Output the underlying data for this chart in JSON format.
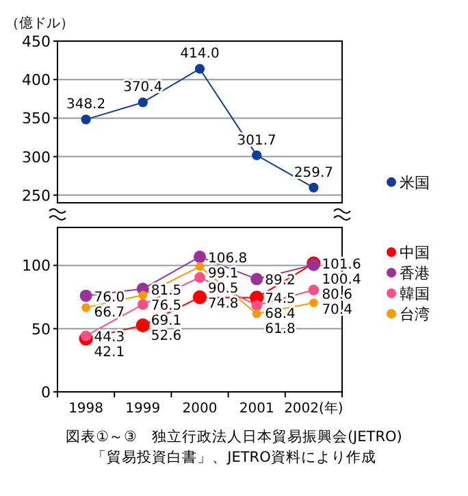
{
  "chart_data": [
    {
      "type": "line",
      "ylabel": "（億ドル）",
      "ylim": [
        240,
        450
      ],
      "yticks": [
        250,
        300,
        350,
        400,
        450
      ],
      "grid": "y",
      "marker": "circle",
      "line_style": "solid",
      "legend": "right",
      "series": [
        {
          "name": "米国",
          "color": "#103c9c",
          "values": [
            348.2,
            370.4,
            414.0,
            301.7,
            259.7
          ],
          "value_labels": [
            "348.2",
            "370.4",
            "414.0",
            "301.7",
            "259.7"
          ]
        }
      ]
    },
    {
      "type": "line",
      "categories": [
        "1998",
        "1999",
        "2000",
        "2001",
        "2002(年)"
      ],
      "ylim": [
        0,
        130
      ],
      "yticks": [
        0,
        50,
        100
      ],
      "grid": "y",
      "marker": "circle",
      "line_style": "solid",
      "data_labels": true,
      "legend": "right",
      "series": [
        {
          "name": "中国",
          "color": "#ff0000",
          "values": [
            42.1,
            52.6,
            74.8,
            74.5,
            101.6
          ]
        },
        {
          "name": "香港",
          "color": "#993399",
          "values": [
            76.0,
            81.5,
            106.8,
            89.2,
            100.4
          ],
          "value_labels": [
            "76.0",
            "81.5",
            "106.8",
            "89.2",
            "100.4"
          ]
        },
        {
          "name": "韓国",
          "color": "#ff4d88",
          "values": [
            44.3,
            69.1,
            90.5,
            68.4,
            80.6
          ]
        },
        {
          "name": "台湾",
          "color": "#ff9900",
          "values": [
            66.7,
            76.5,
            99.1,
            61.8,
            70.4
          ]
        }
      ],
      "annotations": [
        "図表①～③　独立行政法人日本貿易振興会(JETRO)",
        "「貿易投資白書」、JETRO資料により作成"
      ]
    }
  ]
}
